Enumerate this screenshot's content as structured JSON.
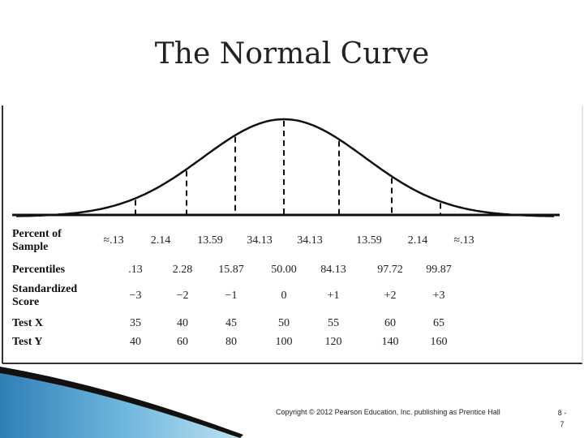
{
  "header": {
    "title": "The Normal Curve"
  },
  "figure": {
    "rows": [
      {
        "label": [
          "Percent of",
          "Sample"
        ],
        "cells": [
          "≈.13",
          "2.14",
          "13.59",
          "34.13",
          "34.13",
          "13.59",
          "2.14",
          "≈.13"
        ]
      },
      {
        "label": [
          "Percentiles"
        ],
        "cells": [
          ".13",
          "2.28",
          "15.87",
          "50.00",
          "84.13",
          "97.72",
          "99.87"
        ]
      },
      {
        "label": [
          "Standardized",
          "Score"
        ],
        "cells": [
          "−3",
          "−2",
          "−1",
          "0",
          "+1",
          "+2",
          "+3"
        ]
      },
      {
        "label": [
          "Test X"
        ],
        "cells": [
          "35",
          "40",
          "45",
          "50",
          "55",
          "60",
          "65"
        ]
      },
      {
        "label": [
          "Test Y"
        ],
        "cells": [
          "40",
          "60",
          "80",
          "100",
          "120",
          "140",
          "160"
        ]
      }
    ]
  },
  "footer": {
    "copyright": "Copyright © 2012 Pearson Education, Inc. publishing as Prentice Hall",
    "page_number": [
      "8 -",
      "7"
    ]
  }
}
